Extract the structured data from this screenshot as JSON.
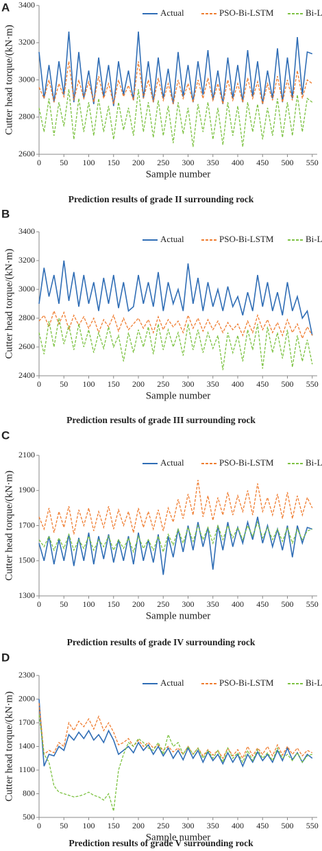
{
  "chart_data": [
    {
      "type": "line",
      "panel_label": "A",
      "y_label": "Cutter head torque/(kN·m)",
      "x_label": "Sample number",
      "caption": "Prediction results of grade II surrounding rock",
      "legend": "top",
      "x": [
        0,
        10,
        20,
        30,
        40,
        50,
        60,
        70,
        80,
        90,
        100,
        110,
        120,
        130,
        140,
        150,
        160,
        170,
        180,
        190,
        200,
        210,
        220,
        230,
        240,
        250,
        260,
        270,
        280,
        290,
        300,
        310,
        320,
        330,
        340,
        350,
        360,
        370,
        380,
        390,
        400,
        410,
        420,
        430,
        440,
        450,
        460,
        470,
        480,
        490,
        500,
        510,
        520,
        530,
        540,
        550
      ],
      "xlim": [
        0,
        560
      ],
      "xticks": [
        0,
        50,
        100,
        150,
        200,
        250,
        300,
        350,
        400,
        450,
        500,
        550
      ],
      "ylim": [
        2600,
        3400
      ],
      "yticks": [
        2600,
        2800,
        3000,
        3200,
        3400
      ],
      "series": [
        {
          "name": "Actual",
          "color": "#2f6db5",
          "values": [
            3150,
            2900,
            3080,
            2880,
            3100,
            2920,
            3260,
            2880,
            3150,
            2900,
            3050,
            2870,
            3120,
            2910,
            3080,
            2860,
            3100,
            2920,
            3050,
            2890,
            3260,
            2900,
            3100,
            2880,
            3120,
            2900,
            3060,
            2870,
            3150,
            2910,
            3080,
            2880,
            3100,
            2920,
            3160,
            2890,
            3050,
            2870,
            3120,
            2900,
            3080,
            2880,
            3160,
            2910,
            3100,
            2870,
            3050,
            2900,
            3170,
            2880,
            3120,
            2900,
            3230,
            2920,
            3150,
            3140
          ]
        },
        {
          "name": "PSO-Bi-LSTM",
          "color": "#ef7d31",
          "values": [
            2960,
            2900,
            3000,
            2880,
            2980,
            2910,
            3100,
            2890,
            3000,
            2900,
            2990,
            2880,
            3020,
            2900,
            2980,
            2870,
            3000,
            2910,
            2970,
            2890,
            3100,
            2900,
            3000,
            2880,
            3010,
            2890,
            2980,
            2870,
            3000,
            2900,
            2980,
            2880,
            3000,
            2900,
            3010,
            2890,
            2980,
            2870,
            3000,
            2890,
            2980,
            2880,
            3010,
            2900,
            2990,
            2870,
            2980,
            2890,
            3020,
            2880,
            3000,
            2890,
            3050,
            2900,
            3000,
            2980
          ]
        },
        {
          "name": "Bi-LSTM",
          "color": "#7dc242",
          "values": [
            2850,
            2720,
            2900,
            2700,
            2880,
            2750,
            2950,
            2680,
            2900,
            2720,
            2880,
            2700,
            2900,
            2720,
            2860,
            2680,
            2880,
            2730,
            2850,
            2700,
            2950,
            2720,
            2880,
            2690,
            2890,
            2700,
            2860,
            2660,
            2880,
            2710,
            2850,
            2640,
            2870,
            2720,
            2880,
            2680,
            2850,
            2650,
            2880,
            2700,
            2860,
            2640,
            2880,
            2720,
            2870,
            2680,
            2850,
            2700,
            2900,
            2690,
            2880,
            2700,
            2920,
            2720,
            2900,
            2880
          ]
        }
      ]
    },
    {
      "type": "line",
      "panel_label": "B",
      "y_label": "Cutter head torque/(kN·m)",
      "x_label": "Sample number",
      "caption": "Prediction results of grade III surrounding rock",
      "legend": "top",
      "x": [
        0,
        10,
        20,
        30,
        40,
        50,
        60,
        70,
        80,
        90,
        100,
        110,
        120,
        130,
        140,
        150,
        160,
        170,
        180,
        190,
        200,
        210,
        220,
        230,
        240,
        250,
        260,
        270,
        280,
        290,
        300,
        310,
        320,
        330,
        340,
        350,
        360,
        370,
        380,
        390,
        400,
        410,
        420,
        430,
        440,
        450,
        460,
        470,
        480,
        490,
        500,
        510,
        520,
        530,
        540,
        550
      ],
      "xlim": [
        0,
        560
      ],
      "xticks": [
        0,
        50,
        100,
        150,
        200,
        250,
        300,
        350,
        400,
        450,
        500,
        550
      ],
      "ylim": [
        2400,
        3400
      ],
      "yticks": [
        2400,
        2600,
        2800,
        3000,
        3200,
        3400
      ],
      "series": [
        {
          "name": "Actual",
          "color": "#2f6db5",
          "values": [
            2900,
            3150,
            2950,
            3100,
            2900,
            3200,
            2920,
            3120,
            2880,
            3100,
            2900,
            3050,
            2850,
            3080,
            2900,
            3100,
            2870,
            3050,
            2850,
            2880,
            3100,
            2900,
            3050,
            2880,
            3120,
            2850,
            3050,
            2900,
            3000,
            2850,
            3180,
            2900,
            3080,
            2850,
            3050,
            2880,
            3000,
            2850,
            3020,
            2880,
            2950,
            2820,
            2980,
            2850,
            3100,
            2880,
            3050,
            2850,
            2980,
            2820,
            3050,
            2850,
            2950,
            2800,
            2850,
            2680
          ]
        },
        {
          "name": "PSO-Bi-LSTM",
          "color": "#ef7d31",
          "values": [
            2780,
            2820,
            2740,
            2850,
            2760,
            2840,
            2720,
            2820,
            2750,
            2810,
            2730,
            2800,
            2700,
            2790,
            2740,
            2820,
            2710,
            2800,
            2720,
            2760,
            2800,
            2730,
            2790,
            2700,
            2810,
            2720,
            2790,
            2740,
            2780,
            2700,
            2820,
            2730,
            2800,
            2710,
            2790,
            2720,
            2780,
            2700,
            2770,
            2720,
            2760,
            2680,
            2780,
            2700,
            2820,
            2720,
            2790,
            2700,
            2770,
            2680,
            2790,
            2700,
            2760,
            2660,
            2740,
            2680
          ]
        },
        {
          "name": "Bi-LSTM",
          "color": "#7dc242",
          "values": [
            2700,
            2550,
            2780,
            2600,
            2800,
            2620,
            2750,
            2580,
            2760,
            2600,
            2720,
            2560,
            2700,
            2590,
            2740,
            2600,
            2680,
            2500,
            2700,
            2560,
            2720,
            2600,
            2740,
            2550,
            2760,
            2580,
            2720,
            2600,
            2700,
            2540,
            2760,
            2580,
            2720,
            2560,
            2700,
            2590,
            2680,
            2440,
            2700,
            2560,
            2680,
            2500,
            2720,
            2580,
            2760,
            2450,
            2740,
            2560,
            2700,
            2520,
            2720,
            2460,
            2680,
            2500,
            2650,
            2480
          ]
        }
      ]
    },
    {
      "type": "line",
      "panel_label": "C",
      "y_label": "Cutter head torque/(kN·m)",
      "x_label": "Sample number",
      "caption": "Prediction results of grade IV surrounding rock",
      "legend": "top",
      "x": [
        0,
        10,
        20,
        30,
        40,
        50,
        60,
        70,
        80,
        90,
        100,
        110,
        120,
        130,
        140,
        150,
        160,
        170,
        180,
        190,
        200,
        210,
        220,
        230,
        240,
        250,
        260,
        270,
        280,
        290,
        300,
        310,
        320,
        330,
        340,
        350,
        360,
        370,
        380,
        390,
        400,
        410,
        420,
        430,
        440,
        450,
        460,
        470,
        480,
        490,
        500,
        510,
        520,
        530,
        540,
        550
      ],
      "xlim": [
        0,
        560
      ],
      "xticks": [
        0,
        50,
        100,
        150,
        200,
        250,
        300,
        350,
        400,
        450,
        500,
        550
      ],
      "ylim": [
        1300,
        2100
      ],
      "yticks": [
        1300,
        1500,
        1700,
        1900,
        2100
      ],
      "series": [
        {
          "name": "Actual",
          "color": "#2f6db5",
          "values": [
            1600,
            1500,
            1640,
            1480,
            1620,
            1500,
            1650,
            1470,
            1630,
            1500,
            1660,
            1480,
            1640,
            1510,
            1650,
            1490,
            1620,
            1500,
            1640,
            1480,
            1660,
            1500,
            1620,
            1490,
            1650,
            1420,
            1640,
            1520,
            1680,
            1550,
            1700,
            1560,
            1720,
            1580,
            1690,
            1450,
            1700,
            1560,
            1720,
            1580,
            1690,
            1600,
            1720,
            1620,
            1750,
            1600,
            1700,
            1580,
            1680,
            1560,
            1700,
            1520,
            1700,
            1600,
            1690,
            1680
          ]
        },
        {
          "name": "PSO-Bi-LSTM",
          "color": "#ef7d31",
          "values": [
            1750,
            1680,
            1800,
            1660,
            1780,
            1690,
            1810,
            1650,
            1790,
            1700,
            1800,
            1670,
            1780,
            1690,
            1810,
            1680,
            1790,
            1700,
            1780,
            1660,
            1800,
            1690,
            1780,
            1680,
            1790,
            1670,
            1800,
            1720,
            1850,
            1740,
            1880,
            1760,
            1960,
            1750,
            1870,
            1730,
            1860,
            1760,
            1890,
            1760,
            1870,
            1780,
            1900,
            1760,
            1940,
            1780,
            1860,
            1760,
            1880,
            1740,
            1890,
            1740,
            1870,
            1760,
            1860,
            1800
          ]
        },
        {
          "name": "Bi-LSTM",
          "color": "#7dc242",
          "values": [
            1620,
            1580,
            1640,
            1560,
            1630,
            1570,
            1650,
            1560,
            1620,
            1570,
            1640,
            1560,
            1620,
            1580,
            1640,
            1560,
            1620,
            1570,
            1630,
            1550,
            1640,
            1570,
            1620,
            1560,
            1640,
            1550,
            1650,
            1590,
            1680,
            1600,
            1690,
            1610,
            1700,
            1620,
            1690,
            1600,
            1700,
            1620,
            1700,
            1630,
            1690,
            1620,
            1700,
            1640,
            1720,
            1630,
            1690,
            1620,
            1680,
            1610,
            1690,
            1600,
            1680,
            1620,
            1670,
            1680
          ]
        }
      ]
    },
    {
      "type": "line",
      "panel_label": "D",
      "y_label": "Cutter head torque/(kN·m)",
      "x_label": "Sample number",
      "caption": "Prediction results of grade V surrounding rock",
      "legend": "top",
      "x": [
        0,
        10,
        20,
        30,
        40,
        50,
        60,
        70,
        80,
        90,
        100,
        110,
        120,
        130,
        140,
        150,
        160,
        170,
        180,
        190,
        200,
        210,
        220,
        230,
        240,
        250,
        260,
        270,
        280,
        290,
        300,
        310,
        320,
        330,
        340,
        350,
        360,
        370,
        380,
        390,
        400,
        410,
        420,
        430,
        440,
        450,
        460,
        470,
        480,
        490,
        500,
        510,
        520,
        530,
        540,
        550
      ],
      "xlim": [
        0,
        560
      ],
      "xticks": [
        0,
        50,
        100,
        150,
        200,
        250,
        300,
        350,
        400,
        450,
        500,
        550
      ],
      "ylim": [
        500,
        2300
      ],
      "yticks": [
        500,
        800,
        1100,
        1400,
        1700,
        2000,
        2300
      ],
      "series": [
        {
          "name": "Actual",
          "color": "#2f6db5",
          "values": [
            2000,
            1150,
            1300,
            1280,
            1400,
            1350,
            1550,
            1480,
            1580,
            1500,
            1600,
            1480,
            1550,
            1450,
            1600,
            1480,
            1300,
            1350,
            1400,
            1320,
            1450,
            1350,
            1420,
            1300,
            1400,
            1280,
            1380,
            1250,
            1350,
            1230,
            1380,
            1250,
            1350,
            1200,
            1330,
            1220,
            1300,
            1180,
            1320,
            1200,
            1300,
            1150,
            1300,
            1200,
            1330,
            1220,
            1300,
            1200,
            1350,
            1220,
            1380,
            1230,
            1320,
            1200,
            1300,
            1250
          ]
        },
        {
          "name": "PSO-Bi-LSTM",
          "color": "#ef7d31",
          "values": [
            1950,
            1300,
            1350,
            1320,
            1450,
            1400,
            1700,
            1600,
            1720,
            1650,
            1750,
            1620,
            1780,
            1600,
            1700,
            1580,
            1420,
            1450,
            1500,
            1400,
            1480,
            1400,
            1450,
            1380,
            1420,
            1350,
            1400,
            1330,
            1380,
            1300,
            1400,
            1300,
            1380,
            1280,
            1360,
            1290,
            1350,
            1250,
            1380,
            1280,
            1360,
            1250,
            1400,
            1280,
            1380,
            1300,
            1400,
            1280,
            1420,
            1290,
            1400,
            1300,
            1380,
            1280,
            1350,
            1320
          ]
        },
        {
          "name": "Bi-LSTM",
          "color": "#7dc242",
          "values": [
            1800,
            1300,
            1200,
            900,
            820,
            800,
            780,
            760,
            770,
            790,
            820,
            780,
            760,
            720,
            800,
            580,
            1100,
            1300,
            1450,
            1400,
            1500,
            1450,
            1380,
            1350,
            1450,
            1300,
            1550,
            1400,
            1450,
            1300,
            1400,
            1300,
            1380,
            1250,
            1350,
            1250,
            1350,
            1200,
            1380,
            1250,
            1320,
            1200,
            1350,
            1220,
            1360,
            1250,
            1320,
            1220,
            1380,
            1250,
            1300,
            1220,
            1320,
            1200,
            1280,
            1300
          ]
        }
      ]
    }
  ]
}
